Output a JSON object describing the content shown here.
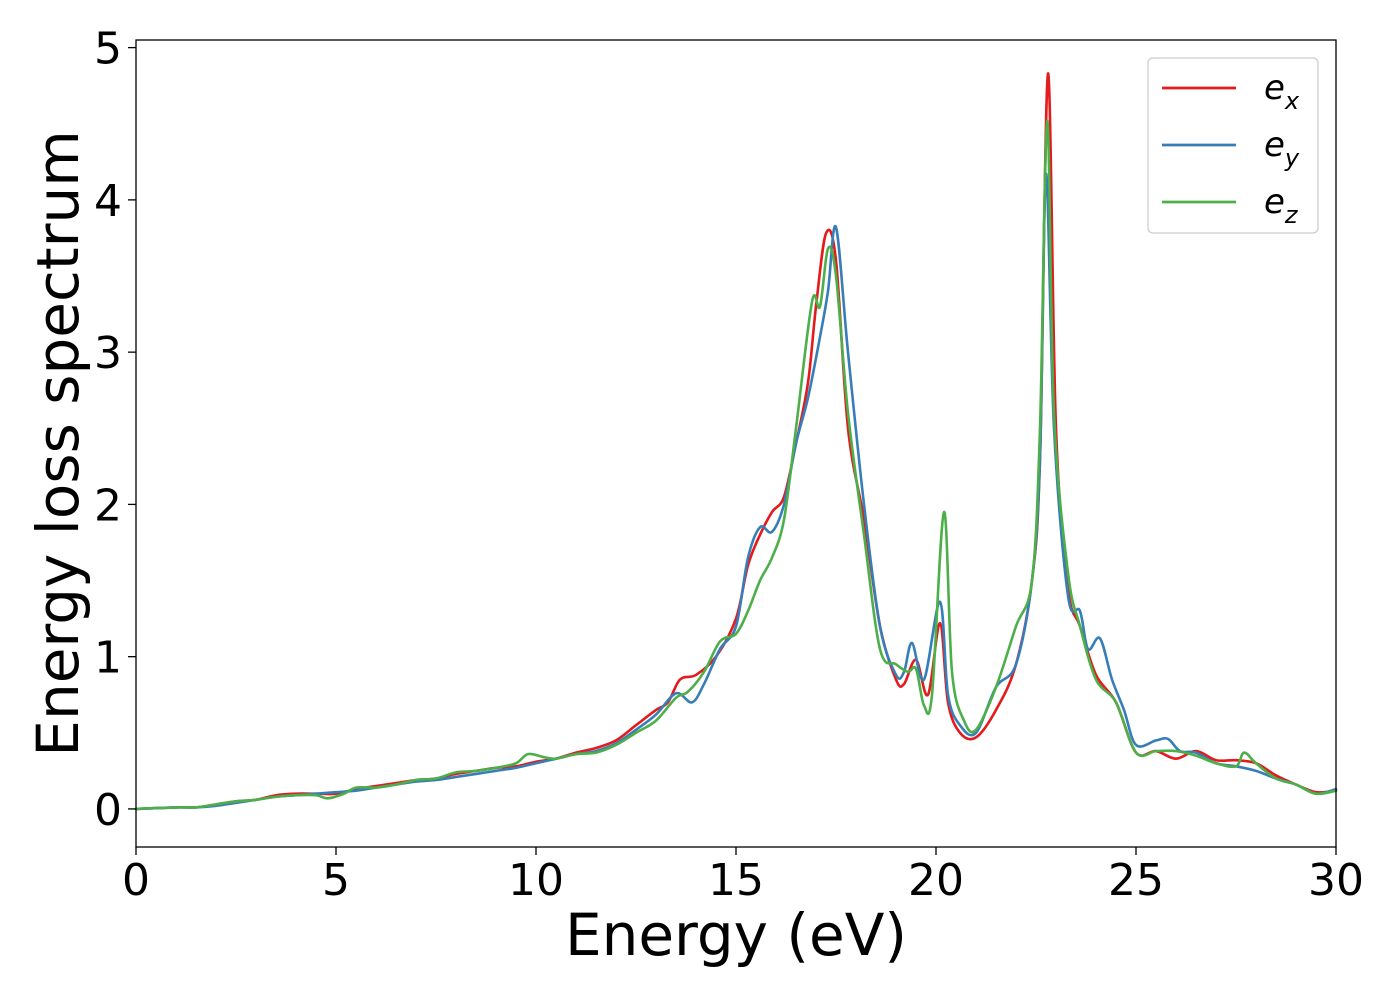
{
  "chart_data": {
    "type": "line",
    "title": "",
    "xlabel": "Energy (eV)",
    "ylabel": "Energy loss spectrum",
    "xlim": [
      0,
      30
    ],
    "ylim": [
      -0.25,
      5.05
    ],
    "xticks": [
      0,
      5,
      10,
      15,
      20,
      25,
      30
    ],
    "xtick_labels": [
      "0",
      "5",
      "10",
      "15",
      "20",
      "25",
      "30"
    ],
    "yticks": [
      0,
      1,
      2,
      3,
      4,
      5
    ],
    "ytick_labels": [
      "0",
      "1",
      "2",
      "3",
      "4",
      "5"
    ],
    "grid": false,
    "legend_position": "top-right",
    "series": [
      {
        "name": "e_x",
        "label_base": "e",
        "label_sub": "x",
        "color": "#e41a1c",
        "points": [
          [
            0,
            0
          ],
          [
            1,
            0.01
          ],
          [
            1.5,
            0.01
          ],
          [
            2,
            0.03
          ],
          [
            2.5,
            0.05
          ],
          [
            3,
            0.06
          ],
          [
            3.5,
            0.09
          ],
          [
            4,
            0.1
          ],
          [
            4.5,
            0.1
          ],
          [
            5,
            0.1
          ],
          [
            5.5,
            0.13
          ],
          [
            6,
            0.15
          ],
          [
            6.5,
            0.17
          ],
          [
            7,
            0.19
          ],
          [
            7.5,
            0.2
          ],
          [
            8,
            0.23
          ],
          [
            8.5,
            0.25
          ],
          [
            9,
            0.27
          ],
          [
            9.5,
            0.28
          ],
          [
            10,
            0.31
          ],
          [
            10.5,
            0.33
          ],
          [
            11,
            0.37
          ],
          [
            11.5,
            0.4
          ],
          [
            12,
            0.45
          ],
          [
            12.5,
            0.55
          ],
          [
            13,
            0.65
          ],
          [
            13.3,
            0.7
          ],
          [
            13.6,
            0.85
          ],
          [
            14,
            0.88
          ],
          [
            14.5,
            1.0
          ],
          [
            15,
            1.25
          ],
          [
            15.3,
            1.6
          ],
          [
            15.6,
            1.8
          ],
          [
            15.9,
            1.95
          ],
          [
            16.2,
            2.05
          ],
          [
            16.5,
            2.4
          ],
          [
            16.8,
            2.8
          ],
          [
            17.0,
            3.3
          ],
          [
            17.25,
            3.78
          ],
          [
            17.5,
            3.6
          ],
          [
            17.8,
            2.5
          ],
          [
            18.2,
            1.9
          ],
          [
            18.6,
            1.2
          ],
          [
            19.0,
            0.85
          ],
          [
            19.2,
            0.82
          ],
          [
            19.5,
            0.98
          ],
          [
            19.8,
            0.75
          ],
          [
            20.1,
            1.22
          ],
          [
            20.3,
            0.7
          ],
          [
            20.6,
            0.5
          ],
          [
            21.0,
            0.47
          ],
          [
            21.5,
            0.65
          ],
          [
            22.0,
            0.95
          ],
          [
            22.4,
            1.5
          ],
          [
            22.6,
            2.3
          ],
          [
            22.8,
            4.83
          ],
          [
            23.0,
            2.5
          ],
          [
            23.3,
            1.45
          ],
          [
            23.6,
            1.2
          ],
          [
            24.0,
            0.88
          ],
          [
            24.5,
            0.7
          ],
          [
            25.0,
            0.37
          ],
          [
            25.5,
            0.38
          ],
          [
            26.0,
            0.33
          ],
          [
            26.5,
            0.38
          ],
          [
            27.0,
            0.32
          ],
          [
            27.5,
            0.32
          ],
          [
            28.0,
            0.3
          ],
          [
            28.5,
            0.22
          ],
          [
            29.0,
            0.16
          ],
          [
            29.5,
            0.11
          ],
          [
            30.0,
            0.12
          ]
        ]
      },
      {
        "name": "e_y",
        "label_base": "e",
        "label_sub": "y",
        "color": "#377eb8",
        "points": [
          [
            0,
            0
          ],
          [
            1,
            0.01
          ],
          [
            1.5,
            0.01
          ],
          [
            2,
            0.02
          ],
          [
            2.5,
            0.04
          ],
          [
            3,
            0.06
          ],
          [
            3.5,
            0.08
          ],
          [
            4,
            0.09
          ],
          [
            4.5,
            0.1
          ],
          [
            5,
            0.11
          ],
          [
            5.5,
            0.12
          ],
          [
            6,
            0.14
          ],
          [
            6.5,
            0.16
          ],
          [
            7,
            0.18
          ],
          [
            7.5,
            0.19
          ],
          [
            8,
            0.21
          ],
          [
            8.5,
            0.23
          ],
          [
            9,
            0.25
          ],
          [
            9.5,
            0.27
          ],
          [
            10,
            0.3
          ],
          [
            10.5,
            0.33
          ],
          [
            11,
            0.36
          ],
          [
            11.5,
            0.38
          ],
          [
            12,
            0.43
          ],
          [
            12.5,
            0.52
          ],
          [
            13,
            0.62
          ],
          [
            13.5,
            0.76
          ],
          [
            13.9,
            0.7
          ],
          [
            14.2,
            0.82
          ],
          [
            14.6,
            1.05
          ],
          [
            15.0,
            1.2
          ],
          [
            15.3,
            1.65
          ],
          [
            15.6,
            1.85
          ],
          [
            15.9,
            1.82
          ],
          [
            16.2,
            2.0
          ],
          [
            16.5,
            2.4
          ],
          [
            16.8,
            2.7
          ],
          [
            17.1,
            3.1
          ],
          [
            17.3,
            3.4
          ],
          [
            17.5,
            3.82
          ],
          [
            17.8,
            3.0
          ],
          [
            18.2,
            2.0
          ],
          [
            18.6,
            1.2
          ],
          [
            19.0,
            0.88
          ],
          [
            19.2,
            0.9
          ],
          [
            19.4,
            1.09
          ],
          [
            19.7,
            0.85
          ],
          [
            20.1,
            1.36
          ],
          [
            20.3,
            0.75
          ],
          [
            20.6,
            0.55
          ],
          [
            21.0,
            0.5
          ],
          [
            21.5,
            0.8
          ],
          [
            22.0,
            0.95
          ],
          [
            22.4,
            1.5
          ],
          [
            22.6,
            2.3
          ],
          [
            22.75,
            4.17
          ],
          [
            22.95,
            2.5
          ],
          [
            23.3,
            1.4
          ],
          [
            23.6,
            1.3
          ],
          [
            23.8,
            1.05
          ],
          [
            24.1,
            1.12
          ],
          [
            24.4,
            0.85
          ],
          [
            24.7,
            0.65
          ],
          [
            25.0,
            0.42
          ],
          [
            25.5,
            0.45
          ],
          [
            25.8,
            0.46
          ],
          [
            26.1,
            0.38
          ],
          [
            26.5,
            0.37
          ],
          [
            27.0,
            0.3
          ],
          [
            27.5,
            0.28
          ],
          [
            28.0,
            0.25
          ],
          [
            28.5,
            0.2
          ],
          [
            29.0,
            0.16
          ],
          [
            29.5,
            0.1
          ],
          [
            30.0,
            0.13
          ]
        ]
      },
      {
        "name": "e_z",
        "label_base": "e",
        "label_sub": "z",
        "color": "#4daf4a",
        "points": [
          [
            0,
            0
          ],
          [
            1,
            0.01
          ],
          [
            1.5,
            0.01
          ],
          [
            2,
            0.03
          ],
          [
            2.5,
            0.05
          ],
          [
            3,
            0.06
          ],
          [
            3.5,
            0.08
          ],
          [
            4,
            0.09
          ],
          [
            4.5,
            0.09
          ],
          [
            4.8,
            0.07
          ],
          [
            5.2,
            0.1
          ],
          [
            5.5,
            0.14
          ],
          [
            6,
            0.14
          ],
          [
            6.5,
            0.16
          ],
          [
            7,
            0.19
          ],
          [
            7.5,
            0.2
          ],
          [
            8,
            0.24
          ],
          [
            8.5,
            0.25
          ],
          [
            9,
            0.27
          ],
          [
            9.5,
            0.3
          ],
          [
            9.8,
            0.36
          ],
          [
            10.2,
            0.34
          ],
          [
            10.5,
            0.33
          ],
          [
            11,
            0.36
          ],
          [
            11.5,
            0.37
          ],
          [
            12,
            0.42
          ],
          [
            12.5,
            0.5
          ],
          [
            13,
            0.58
          ],
          [
            13.5,
            0.73
          ],
          [
            13.8,
            0.77
          ],
          [
            14.2,
            0.9
          ],
          [
            14.6,
            1.1
          ],
          [
            15.0,
            1.15
          ],
          [
            15.3,
            1.3
          ],
          [
            15.6,
            1.5
          ],
          [
            15.9,
            1.65
          ],
          [
            16.2,
            1.9
          ],
          [
            16.5,
            2.5
          ],
          [
            16.9,
            3.33
          ],
          [
            17.1,
            3.3
          ],
          [
            17.3,
            3.68
          ],
          [
            17.5,
            3.5
          ],
          [
            17.8,
            2.6
          ],
          [
            18.2,
            1.8
          ],
          [
            18.6,
            1.05
          ],
          [
            19.0,
            0.95
          ],
          [
            19.3,
            0.9
          ],
          [
            19.5,
            0.92
          ],
          [
            19.7,
            0.68
          ],
          [
            19.9,
            0.75
          ],
          [
            20.2,
            1.95
          ],
          [
            20.4,
            0.9
          ],
          [
            20.7,
            0.58
          ],
          [
            21.0,
            0.52
          ],
          [
            21.5,
            0.8
          ],
          [
            22.0,
            1.2
          ],
          [
            22.4,
            1.5
          ],
          [
            22.6,
            2.5
          ],
          [
            22.78,
            4.52
          ],
          [
            22.95,
            2.6
          ],
          [
            23.3,
            1.55
          ],
          [
            23.6,
            1.2
          ],
          [
            24.0,
            0.85
          ],
          [
            24.5,
            0.7
          ],
          [
            25.0,
            0.37
          ],
          [
            25.5,
            0.38
          ],
          [
            26.0,
            0.38
          ],
          [
            26.5,
            0.35
          ],
          [
            27.0,
            0.3
          ],
          [
            27.5,
            0.28
          ],
          [
            27.7,
            0.37
          ],
          [
            28.0,
            0.3
          ],
          [
            28.5,
            0.2
          ],
          [
            29.0,
            0.16
          ],
          [
            29.5,
            0.1
          ],
          [
            30.0,
            0.12
          ]
        ]
      }
    ]
  }
}
